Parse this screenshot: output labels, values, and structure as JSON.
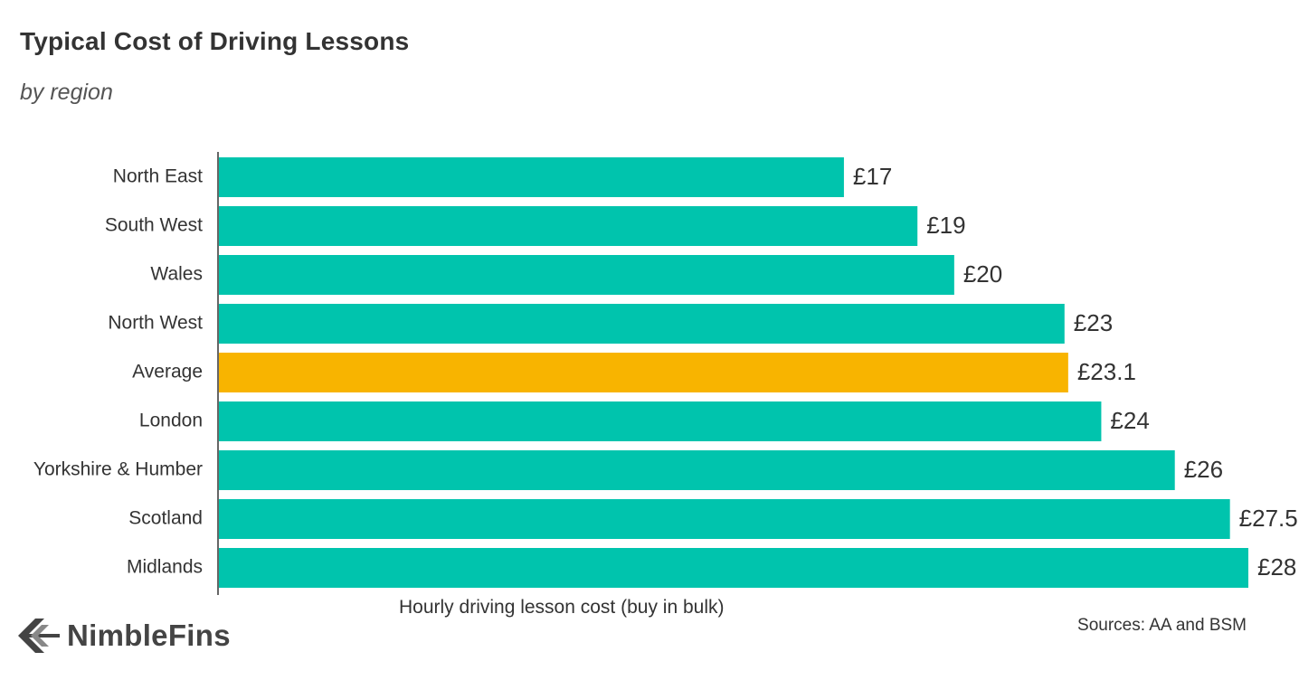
{
  "header": {
    "title": "Typical Cost of Driving Lessons",
    "subtitle": "by region"
  },
  "chart_data": {
    "type": "bar",
    "orientation": "horizontal",
    "title": "Typical Cost of Driving Lessons",
    "subtitle": "by region",
    "xlabel": "Hourly driving lesson cost (buy in bulk)",
    "ylabel": "",
    "xlim": [
      0,
      28
    ],
    "categories": [
      "North East",
      "South West",
      "Wales",
      "North West",
      "Average",
      "London",
      "Yorkshire & Humber",
      "Scotland",
      "Midlands"
    ],
    "values": [
      17,
      19,
      20,
      23,
      23.1,
      24,
      26,
      27.5,
      28
    ],
    "value_labels": [
      "£17",
      "£19",
      "£20",
      "£23",
      "£23.1",
      "£24",
      "£26",
      "£27.5",
      "£28"
    ],
    "highlight_category": "Average",
    "colors": {
      "default": "#00c4ad",
      "highlight": "#f8b400"
    },
    "grid": false,
    "legend": "none"
  },
  "footer": {
    "source": "Sources: AA and BSM",
    "brand": "NimbleFins",
    "brand_icon": "arrow-left-icon"
  }
}
